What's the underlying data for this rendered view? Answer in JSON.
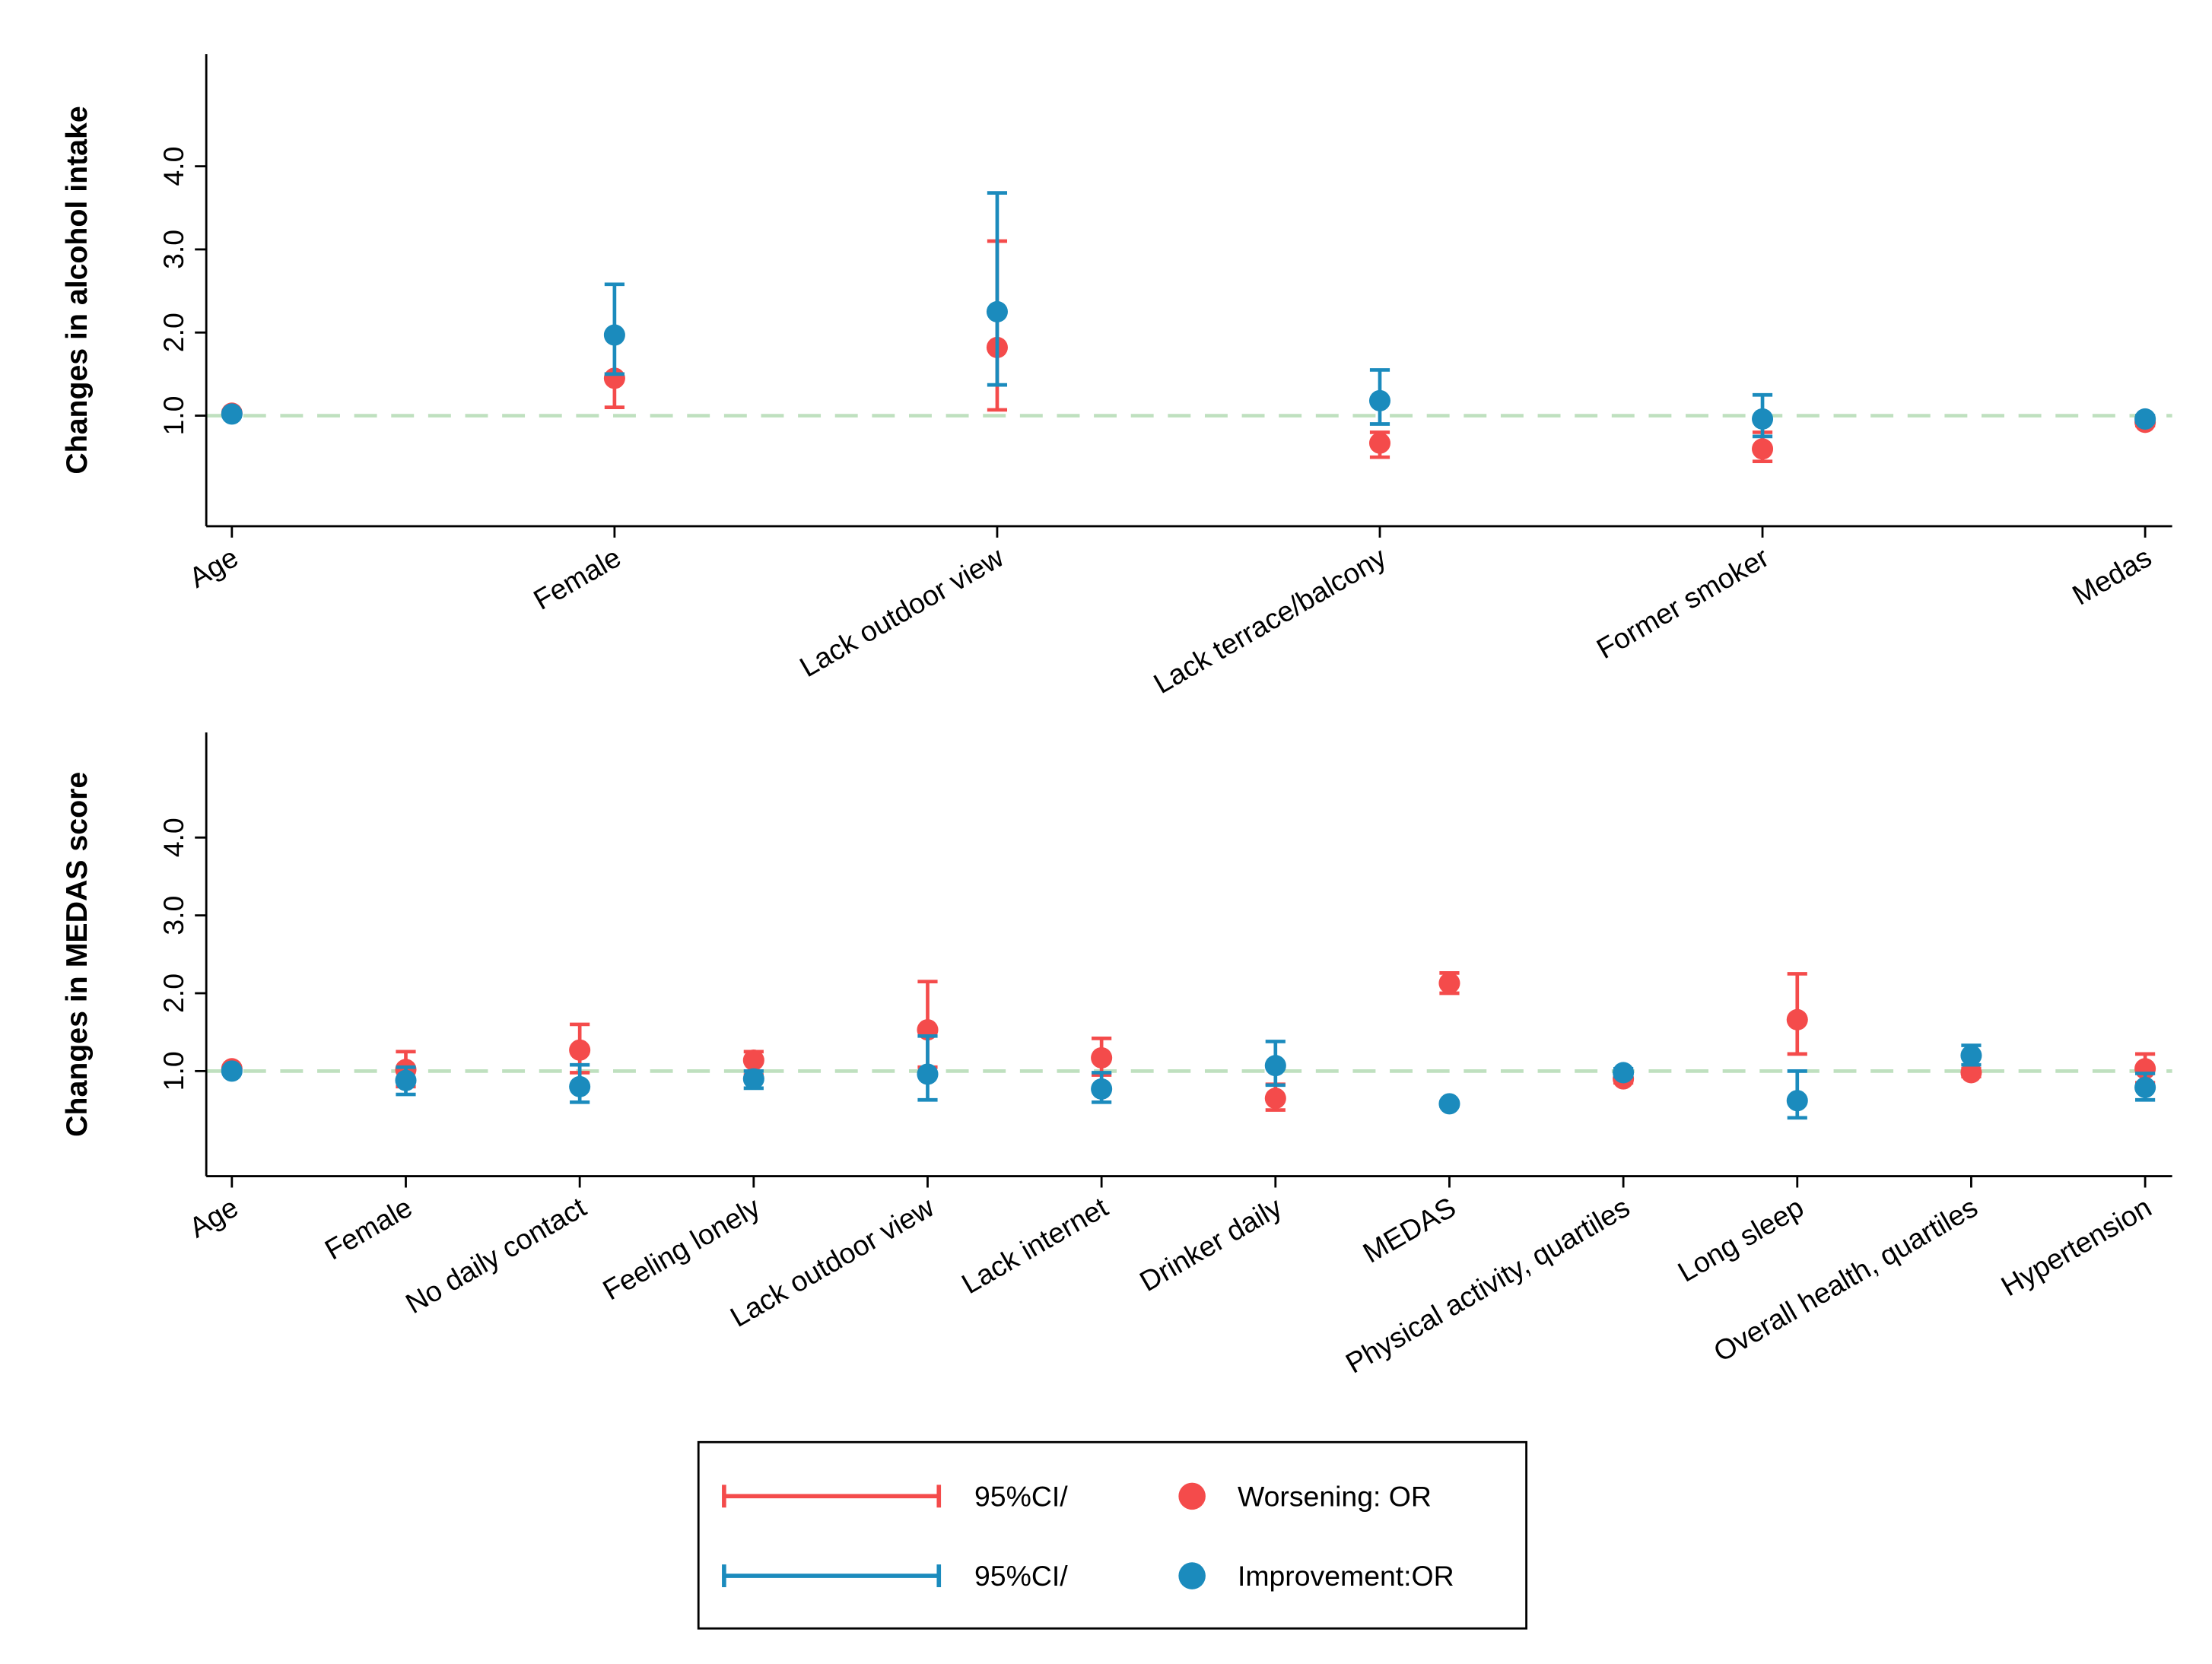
{
  "chart_data": [
    {
      "type": "errorbar",
      "ylabel": "Changes in alcohol intake",
      "categories": [
        "Age",
        "Female",
        "Lack  outdoor view",
        "Lack  terrace/balcony",
        "Former smoker",
        "Medas"
      ],
      "series": [
        {
          "color": "#f44b4b",
          "values": [
            1.03,
            1.45,
            1.82,
            0.67,
            0.6,
            0.92
          ],
          "lower": [
            1.0,
            1.1,
            1.07,
            0.5,
            0.45,
            0.88
          ],
          "upper": [
            1.06,
            1.5,
            3.1,
            0.8,
            0.8,
            0.96
          ]
        },
        {
          "color": "#1b8bbd",
          "values": [
            1.02,
            1.97,
            2.25,
            1.18,
            0.96,
            0.96
          ],
          "lower": [
            0.99,
            1.5,
            1.37,
            0.9,
            0.75,
            0.92
          ],
          "upper": [
            1.05,
            2.58,
            3.68,
            1.55,
            1.25,
            1.0
          ]
        }
      ],
      "ylim": [
        -0.33,
        5.35
      ],
      "yticks": [
        {
          "value": 1,
          "label": "1.0"
        },
        {
          "value": 2,
          "label": "2.0"
        },
        {
          "value": 3,
          "label": "3.0"
        },
        {
          "value": 4,
          "label": "4.0"
        }
      ],
      "reference_line": 1,
      "reference_color": "#bfe0bf"
    },
    {
      "type": "errorbar",
      "ylabel": "Changes in MEDAS score",
      "categories": [
        "Age",
        "Female",
        "No daily contact",
        "Feeling lonely",
        "Lack outdoor view",
        "Lack internet",
        "Drinker daily",
        "MEDAS",
        "Physical activity, quartiles",
        "Long sleep",
        "Overall health, quartiles",
        "Hypertension"
      ],
      "series": [
        {
          "color": "#f44b4b",
          "values": [
            1.03,
            1.02,
            1.27,
            1.14,
            1.53,
            1.17,
            0.65,
            2.13,
            0.9,
            1.66,
            0.98,
            1.03
          ],
          "lower": [
            1.0,
            0.8,
            0.98,
            0.95,
            1.05,
            0.95,
            0.5,
            2.0,
            0.85,
            1.22,
            0.93,
            0.85
          ],
          "upper": [
            1.06,
            1.25,
            1.6,
            1.25,
            2.15,
            1.42,
            0.83,
            2.26,
            0.95,
            2.25,
            1.03,
            1.22
          ]
        },
        {
          "color": "#1b8bbd",
          "values": [
            1.0,
            0.88,
            0.8,
            0.9,
            0.96,
            0.77,
            1.07,
            0.58,
            0.98,
            0.62,
            1.2,
            0.79
          ],
          "lower": [
            0.98,
            0.7,
            0.6,
            0.78,
            0.63,
            0.6,
            0.82,
            0.55,
            0.93,
            0.4,
            1.08,
            0.63
          ],
          "upper": [
            1.02,
            1.05,
            1.08,
            1.0,
            1.45,
            0.98,
            1.38,
            0.61,
            1.03,
            1.0,
            1.33,
            0.97
          ]
        }
      ],
      "ylim": [
        -0.35,
        5.35
      ],
      "yticks": [
        {
          "value": 1,
          "label": "1.0"
        },
        {
          "value": 2,
          "label": "2.0"
        },
        {
          "value": 3,
          "label": "3.0"
        },
        {
          "value": 4,
          "label": "4.0"
        }
      ],
      "reference_line": 1,
      "reference_color": "#bfe0bf"
    }
  ],
  "legend": [
    {
      "ci_label": "95%CI/",
      "name": "Worsening: OR",
      "color": "#f44b4b"
    },
    {
      "ci_label": "95%CI/",
      "name": "Improvement:OR",
      "color": "#1b8bbd"
    }
  ]
}
